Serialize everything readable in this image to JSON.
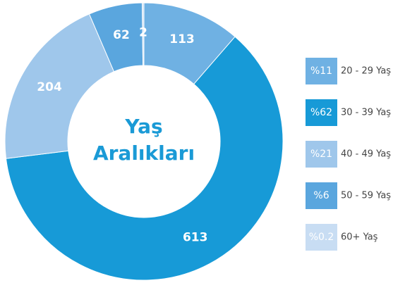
{
  "chart_data": {
    "type": "donut",
    "center_text": [
      "Yaş",
      "Aralıkları"
    ],
    "categories": [
      "20 - 29 Yaş",
      "30 - 39 Yaş",
      "40 - 49 Yaş",
      "50 - 59 Yaş",
      "60+ Yaş"
    ],
    "values": [
      113,
      613,
      204,
      62,
      2
    ],
    "percent_labels": [
      "%11",
      "%62",
      "%21",
      "%6",
      "%0.2"
    ],
    "colors": [
      "#6fb1e3",
      "#179ad7",
      "#9fc7eb",
      "#5aa6de",
      "#c8ddf3"
    ]
  }
}
